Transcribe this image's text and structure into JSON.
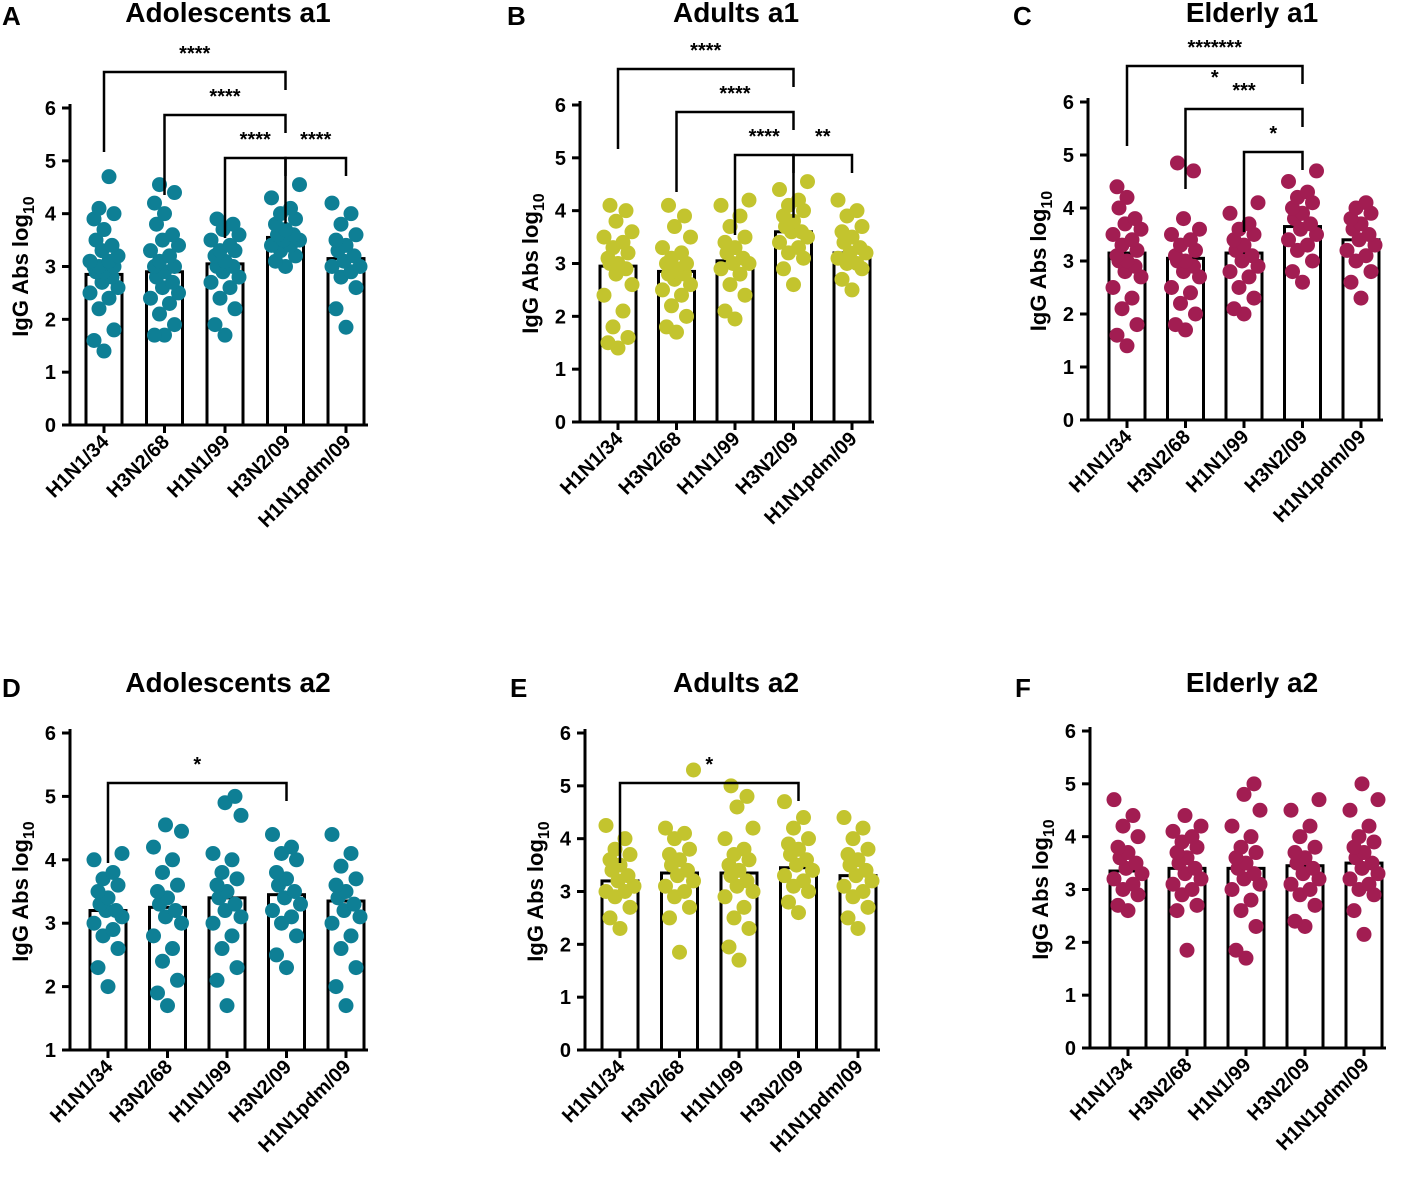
{
  "chart_data": [
    {
      "type": "bar",
      "panel": "A",
      "title": "Adolescents a1",
      "ylabel": "IgG Abs log10",
      "categories": [
        "H1N1/34",
        "H3N2/68",
        "H1N1/99",
        "H3N2/09",
        "H1N1pdm/09"
      ],
      "values": [
        2.85,
        2.9,
        3.05,
        3.55,
        3.15
      ],
      "ylim": [
        0,
        6
      ],
      "yticks": [
        0,
        1,
        2,
        3,
        4,
        5,
        6
      ],
      "color": "#0e7f95",
      "points": [
        [
          1.4,
          1.6,
          1.8,
          2.2,
          2.4,
          2.5,
          2.6,
          2.7,
          2.8,
          2.9,
          2.9,
          3.0,
          3.0,
          3.0,
          3.1,
          3.1,
          3.2,
          3.3,
          3.4,
          3.5,
          3.7,
          3.9,
          4.0,
          4.1,
          4.7
        ],
        [
          1.7,
          1.7,
          1.9,
          2.1,
          2.3,
          2.4,
          2.5,
          2.6,
          2.7,
          2.8,
          2.9,
          3.0,
          3.0,
          3.1,
          3.2,
          3.3,
          3.4,
          3.5,
          3.6,
          3.8,
          4.0,
          4.2,
          4.4,
          4.55
        ],
        [
          1.7,
          1.9,
          2.2,
          2.4,
          2.6,
          2.7,
          2.8,
          2.9,
          3.0,
          3.0,
          3.1,
          3.2,
          3.3,
          3.3,
          3.4,
          3.5,
          3.6,
          3.7,
          3.8,
          3.9
        ],
        [
          3.0,
          3.1,
          3.2,
          3.3,
          3.4,
          3.4,
          3.5,
          3.5,
          3.6,
          3.6,
          3.7,
          3.8,
          3.9,
          4.0,
          4.1,
          4.3,
          4.55
        ],
        [
          1.85,
          2.2,
          2.6,
          2.8,
          2.9,
          3.0,
          3.0,
          3.1,
          3.2,
          3.3,
          3.4,
          3.5,
          3.6,
          3.8,
          4.0,
          4.2
        ]
      ],
      "comparisons": [
        {
          "from": 0,
          "to": 3,
          "label": "****",
          "level": 3
        },
        {
          "from": 1,
          "to": 3,
          "label": "****",
          "level": 2
        },
        {
          "from": 2,
          "to": 3,
          "label": "****",
          "level": 1
        },
        {
          "from": 3,
          "to": 4,
          "label": "****",
          "level": 1
        }
      ]
    },
    {
      "type": "bar",
      "panel": "B",
      "title": "Adults a1",
      "ylabel": "IgG Abs log10",
      "categories": [
        "H1N1/34",
        "H3N2/68",
        "H1N1/99",
        "H3N2/09",
        "H1N1pdm/09"
      ],
      "values": [
        2.95,
        2.85,
        3.05,
        3.6,
        3.2
      ],
      "ylim": [
        0,
        6
      ],
      "yticks": [
        0,
        1,
        2,
        3,
        4,
        5,
        6
      ],
      "color": "#c3c42e",
      "points": [
        [
          1.4,
          1.5,
          1.6,
          1.8,
          2.1,
          2.4,
          2.6,
          2.8,
          2.9,
          3.0,
          3.0,
          3.1,
          3.2,
          3.3,
          3.4,
          3.5,
          3.6,
          3.8,
          4.0,
          4.1
        ],
        [
          1.7,
          1.8,
          2.0,
          2.2,
          2.4,
          2.5,
          2.6,
          2.7,
          2.8,
          2.8,
          2.9,
          3.0,
          3.0,
          3.1,
          3.2,
          3.3,
          3.5,
          3.7,
          3.9,
          4.1
        ],
        [
          1.95,
          2.1,
          2.4,
          2.6,
          2.8,
          2.9,
          3.0,
          3.0,
          3.1,
          3.2,
          3.3,
          3.4,
          3.5,
          3.7,
          3.9,
          4.1,
          4.2
        ],
        [
          2.6,
          2.9,
          3.1,
          3.2,
          3.3,
          3.4,
          3.5,
          3.6,
          3.6,
          3.7,
          3.8,
          3.9,
          4.0,
          4.1,
          4.2,
          4.4,
          4.55
        ],
        [
          2.5,
          2.7,
          2.9,
          3.0,
          3.0,
          3.1,
          3.2,
          3.2,
          3.3,
          3.4,
          3.5,
          3.6,
          3.7,
          3.9,
          4.0,
          4.2
        ]
      ],
      "comparisons": [
        {
          "from": 0,
          "to": 3,
          "label": "****",
          "level": 3
        },
        {
          "from": 1,
          "to": 3,
          "label": "****",
          "level": 2
        },
        {
          "from": 2,
          "to": 3,
          "label": "****",
          "level": 1
        },
        {
          "from": 3,
          "to": 4,
          "label": "**",
          "level": 1
        }
      ]
    },
    {
      "type": "bar",
      "panel": "C",
      "title": "Elderly a1",
      "ylabel": "IgG Abs log10",
      "categories": [
        "H1N1/34",
        "H3N2/68",
        "H1N1/99",
        "H3N2/09",
        "H1N1pdm/09"
      ],
      "values": [
        3.15,
        3.05,
        3.15,
        3.65,
        3.4
      ],
      "ylim": [
        0,
        6
      ],
      "yticks": [
        0,
        1,
        2,
        3,
        4,
        5,
        6
      ],
      "color": "#a21d52",
      "points": [
        [
          1.4,
          1.6,
          1.8,
          2.1,
          2.3,
          2.5,
          2.7,
          2.8,
          2.9,
          3.0,
          3.0,
          3.1,
          3.2,
          3.3,
          3.4,
          3.5,
          3.6,
          3.7,
          3.8,
          4.0,
          4.2,
          4.4
        ],
        [
          1.7,
          1.8,
          2.0,
          2.2,
          2.4,
          2.5,
          2.7,
          2.8,
          2.9,
          3.0,
          3.0,
          3.1,
          3.2,
          3.3,
          3.4,
          3.5,
          3.6,
          3.8,
          4.7,
          4.85
        ],
        [
          2.0,
          2.1,
          2.3,
          2.5,
          2.7,
          2.8,
          2.9,
          3.0,
          3.1,
          3.2,
          3.3,
          3.4,
          3.5,
          3.6,
          3.7,
          3.9,
          4.1
        ],
        [
          2.6,
          2.8,
          3.0,
          3.2,
          3.3,
          3.4,
          3.5,
          3.6,
          3.7,
          3.8,
          3.9,
          4.0,
          4.1,
          4.2,
          4.3,
          4.5,
          4.7
        ],
        [
          2.3,
          2.6,
          2.8,
          3.0,
          3.1,
          3.2,
          3.3,
          3.4,
          3.5,
          3.6,
          3.7,
          3.8,
          3.9,
          4.0,
          4.1
        ]
      ],
      "comparisons": [
        {
          "from": 0,
          "to": 3,
          "label": "*******",
          "level": 3
        },
        {
          "from": 0,
          "to": 3,
          "label": "*",
          "level": 2.3,
          "label_only": true
        },
        {
          "from": 1,
          "to": 3,
          "label": "***",
          "level": 2
        },
        {
          "from": 2,
          "to": 3,
          "label": "*",
          "level": 1
        }
      ]
    },
    {
      "type": "bar",
      "panel": "D",
      "title": "Adolescents a2",
      "ylabel": "IgG Abs log10",
      "categories": [
        "H1N1/34",
        "H3N2/68",
        "H1N1/99",
        "H3N2/09",
        "H1N1pdm/09"
      ],
      "values": [
        3.2,
        3.25,
        3.4,
        3.45,
        3.35
      ],
      "ylim": [
        1,
        6
      ],
      "yticks": [
        1,
        2,
        3,
        4,
        5,
        6
      ],
      "color": "#0e7f95",
      "points": [
        [
          2.0,
          2.3,
          2.6,
          2.8,
          2.9,
          3.0,
          3.1,
          3.2,
          3.2,
          3.3,
          3.4,
          3.5,
          3.6,
          3.7,
          3.8,
          4.0,
          4.1
        ],
        [
          1.7,
          1.9,
          2.1,
          2.4,
          2.6,
          2.8,
          3.0,
          3.1,
          3.2,
          3.3,
          3.4,
          3.5,
          3.6,
          3.8,
          4.0,
          4.2,
          4.45,
          4.55
        ],
        [
          1.7,
          2.1,
          2.3,
          2.6,
          2.8,
          3.0,
          3.1,
          3.2,
          3.3,
          3.4,
          3.5,
          3.6,
          3.7,
          3.8,
          4.0,
          4.1,
          4.7,
          4.9,
          5.0
        ],
        [
          2.3,
          2.5,
          2.8,
          3.0,
          3.1,
          3.2,
          3.3,
          3.4,
          3.5,
          3.6,
          3.7,
          3.8,
          4.0,
          4.1,
          4.2,
          4.4
        ],
        [
          1.7,
          2.0,
          2.3,
          2.6,
          2.8,
          3.0,
          3.1,
          3.2,
          3.3,
          3.4,
          3.5,
          3.6,
          3.7,
          3.9,
          4.1,
          4.4
        ]
      ],
      "comparisons": [
        {
          "from": 0,
          "to": 3,
          "label": "*",
          "level": 1
        }
      ]
    },
    {
      "type": "bar",
      "panel": "E",
      "title": "Adults a2",
      "ylabel": "IgG Abs log10",
      "categories": [
        "H1N1/34",
        "H3N2/68",
        "H1N1/99",
        "H3N2/09",
        "H1N1pdm/09"
      ],
      "values": [
        3.2,
        3.35,
        3.35,
        3.45,
        3.3
      ],
      "ylim": [
        0,
        6
      ],
      "yticks": [
        0,
        1,
        2,
        3,
        4,
        5,
        6
      ],
      "color": "#c3c42e",
      "points": [
        [
          2.3,
          2.5,
          2.7,
          2.9,
          3.0,
          3.0,
          3.1,
          3.2,
          3.3,
          3.4,
          3.5,
          3.6,
          3.7,
          3.8,
          4.0,
          4.25
        ],
        [
          1.85,
          2.5,
          2.7,
          2.9,
          3.0,
          3.1,
          3.2,
          3.3,
          3.4,
          3.5,
          3.6,
          3.7,
          3.8,
          4.0,
          4.1,
          4.2,
          5.3
        ],
        [
          1.7,
          1.95,
          2.3,
          2.5,
          2.7,
          2.9,
          3.0,
          3.1,
          3.2,
          3.3,
          3.4,
          3.5,
          3.6,
          3.7,
          3.8,
          4.0,
          4.2,
          4.6,
          4.8,
          5.0
        ],
        [
          2.6,
          2.8,
          3.0,
          3.1,
          3.2,
          3.3,
          3.4,
          3.5,
          3.6,
          3.7,
          3.8,
          3.9,
          4.0,
          4.2,
          4.4,
          4.7
        ],
        [
          2.3,
          2.5,
          2.7,
          2.9,
          3.0,
          3.1,
          3.2,
          3.3,
          3.4,
          3.5,
          3.6,
          3.7,
          3.8,
          4.0,
          4.2,
          4.4
        ]
      ],
      "comparisons": [
        {
          "from": 0,
          "to": 3,
          "label": "*",
          "level": 1
        }
      ]
    },
    {
      "type": "bar",
      "panel": "F",
      "title": "Elderly a2",
      "ylabel": "IgG Abs log10",
      "categories": [
        "H1N1/34",
        "H3N2/68",
        "H1N1/99",
        "H3N2/09",
        "H1N1pdm/09"
      ],
      "values": [
        3.35,
        3.4,
        3.4,
        3.45,
        3.5
      ],
      "ylim": [
        0,
        6
      ],
      "yticks": [
        0,
        1,
        2,
        3,
        4,
        5,
        6
      ],
      "color": "#a21d52",
      "points": [
        [
          2.6,
          2.7,
          2.9,
          3.0,
          3.1,
          3.2,
          3.3,
          3.4,
          3.5,
          3.6,
          3.7,
          3.8,
          4.0,
          4.2,
          4.4,
          4.7
        ],
        [
          1.85,
          2.6,
          2.7,
          2.9,
          3.0,
          3.1,
          3.2,
          3.3,
          3.4,
          3.5,
          3.6,
          3.7,
          3.8,
          3.9,
          4.0,
          4.1,
          4.2,
          4.4
        ],
        [
          1.7,
          1.85,
          2.3,
          2.6,
          2.8,
          3.0,
          3.1,
          3.2,
          3.3,
          3.4,
          3.5,
          3.6,
          3.7,
          3.8,
          4.0,
          4.2,
          4.5,
          4.8,
          5.0
        ],
        [
          2.3,
          2.4,
          2.7,
          2.9,
          3.0,
          3.1,
          3.2,
          3.3,
          3.4,
          3.5,
          3.6,
          3.7,
          3.8,
          4.0,
          4.2,
          4.5,
          4.7
        ],
        [
          2.15,
          2.6,
          2.9,
          3.0,
          3.1,
          3.2,
          3.3,
          3.4,
          3.5,
          3.6,
          3.7,
          3.8,
          3.9,
          4.0,
          4.2,
          4.5,
          4.7,
          5.0
        ]
      ],
      "comparisons": []
    }
  ]
}
